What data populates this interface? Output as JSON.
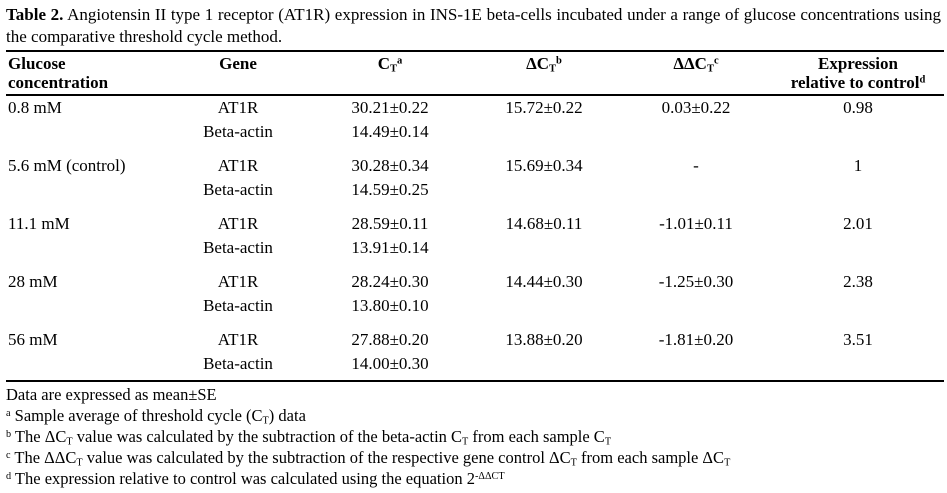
{
  "caption": {
    "segments": [
      {
        "text": "Table 2.",
        "style": "bold"
      },
      {
        "text": " Angiotensin II type 1 receptor (AT1R) expression in INS-1E beta-cells incubated under a range of glucose concentrations using the comparative threshold cycle method."
      }
    ]
  },
  "table": {
    "headers": {
      "glucose": {
        "segments": [
          {
            "text": "Glucose"
          },
          {
            "text": "",
            "style": "br"
          },
          {
            "text": "concentration"
          }
        ]
      },
      "gene": {
        "segments": [
          {
            "text": "Gene"
          }
        ]
      },
      "ct": {
        "segments": [
          {
            "text": "C"
          },
          {
            "text": "T",
            "style": "sub"
          },
          {
            "text": "a",
            "style": "sup"
          }
        ]
      },
      "dct": {
        "segments": [
          {
            "text": "ΔC"
          },
          {
            "text": "T",
            "style": "sub"
          },
          {
            "text": "b",
            "style": "sup"
          }
        ]
      },
      "ddct": {
        "segments": [
          {
            "text": "ΔΔC"
          },
          {
            "text": "T",
            "style": "sub"
          },
          {
            "text": "c",
            "style": "sup"
          }
        ]
      },
      "expression": {
        "segments": [
          {
            "text": "Expression"
          },
          {
            "text": "",
            "style": "br"
          },
          {
            "text": "relative to control"
          },
          {
            "text": "d",
            "style": "sup"
          }
        ]
      }
    },
    "rows": [
      {
        "glucose": "0.8 mM",
        "gene": "AT1R",
        "ct": "30.21±0.22",
        "dct": "15.72±0.22",
        "ddct": "0.03±0.22",
        "expr": "0.98"
      },
      {
        "glucose": "",
        "gene": "Beta-actin",
        "ct": "14.49±0.14",
        "dct": "",
        "ddct": "",
        "expr": ""
      },
      {
        "glucose": "5.6 mM (control)",
        "gene": "AT1R",
        "ct": "30.28±0.34",
        "dct": "15.69±0.34",
        "ddct": "-",
        "expr": "1"
      },
      {
        "glucose": "",
        "gene": "Beta-actin",
        "ct": "14.59±0.25",
        "dct": "",
        "ddct": "",
        "expr": ""
      },
      {
        "glucose": "11.1 mM",
        "gene": "AT1R",
        "ct": "28.59±0.11",
        "dct": "14.68±0.11",
        "ddct": "-1.01±0.11",
        "expr": "2.01"
      },
      {
        "glucose": "",
        "gene": "Beta-actin",
        "ct": "13.91±0.14",
        "dct": "",
        "ddct": "",
        "expr": ""
      },
      {
        "glucose": "28 mM",
        "gene": "AT1R",
        "ct": "28.24±0.30",
        "dct": "14.44±0.30",
        "ddct": "-1.25±0.30",
        "expr": "2.38"
      },
      {
        "glucose": "",
        "gene": "Beta-actin",
        "ct": "13.80±0.10",
        "dct": "",
        "ddct": "",
        "expr": ""
      },
      {
        "glucose": "56 mM",
        "gene": "AT1R",
        "ct": "27.88±0.20",
        "dct": "13.88±0.20",
        "ddct": "-1.81±0.20",
        "expr": "3.51"
      },
      {
        "glucose": "",
        "gene": "Beta-actin",
        "ct": "14.00±0.30",
        "dct": "",
        "ddct": "",
        "expr": ""
      }
    ],
    "footnotes": [
      {
        "segments": [
          {
            "text": "Data are expressed as mean±SE"
          }
        ]
      },
      {
        "segments": [
          {
            "text": "a",
            "style": "sup"
          },
          {
            "text": " Sample average of threshold cycle (C"
          },
          {
            "text": "T",
            "style": "sub"
          },
          {
            "text": ") data"
          }
        ]
      },
      {
        "segments": [
          {
            "text": "b",
            "style": "sup"
          },
          {
            "text": " The ΔC"
          },
          {
            "text": "T",
            "style": "sub"
          },
          {
            "text": " value was calculated by the subtraction of the beta-actin C"
          },
          {
            "text": "T",
            "style": "sub"
          },
          {
            "text": " from each sample C"
          },
          {
            "text": "T",
            "style": "sub"
          }
        ]
      },
      {
        "segments": [
          {
            "text": "c",
            "style": "sup"
          },
          {
            "text": " The ΔΔC"
          },
          {
            "text": "T",
            "style": "sub"
          },
          {
            "text": " value was calculated by the subtraction of the respective gene control ΔC"
          },
          {
            "text": "T",
            "style": "sub"
          },
          {
            "text": " from each sample ΔC"
          },
          {
            "text": "T",
            "style": "sub"
          }
        ]
      },
      {
        "segments": [
          {
            "text": "d",
            "style": "sup"
          },
          {
            "text": " The expression relative to control was calculated using the equation 2"
          },
          {
            "text": "-ΔΔCT",
            "style": "sup"
          }
        ]
      }
    ]
  }
}
